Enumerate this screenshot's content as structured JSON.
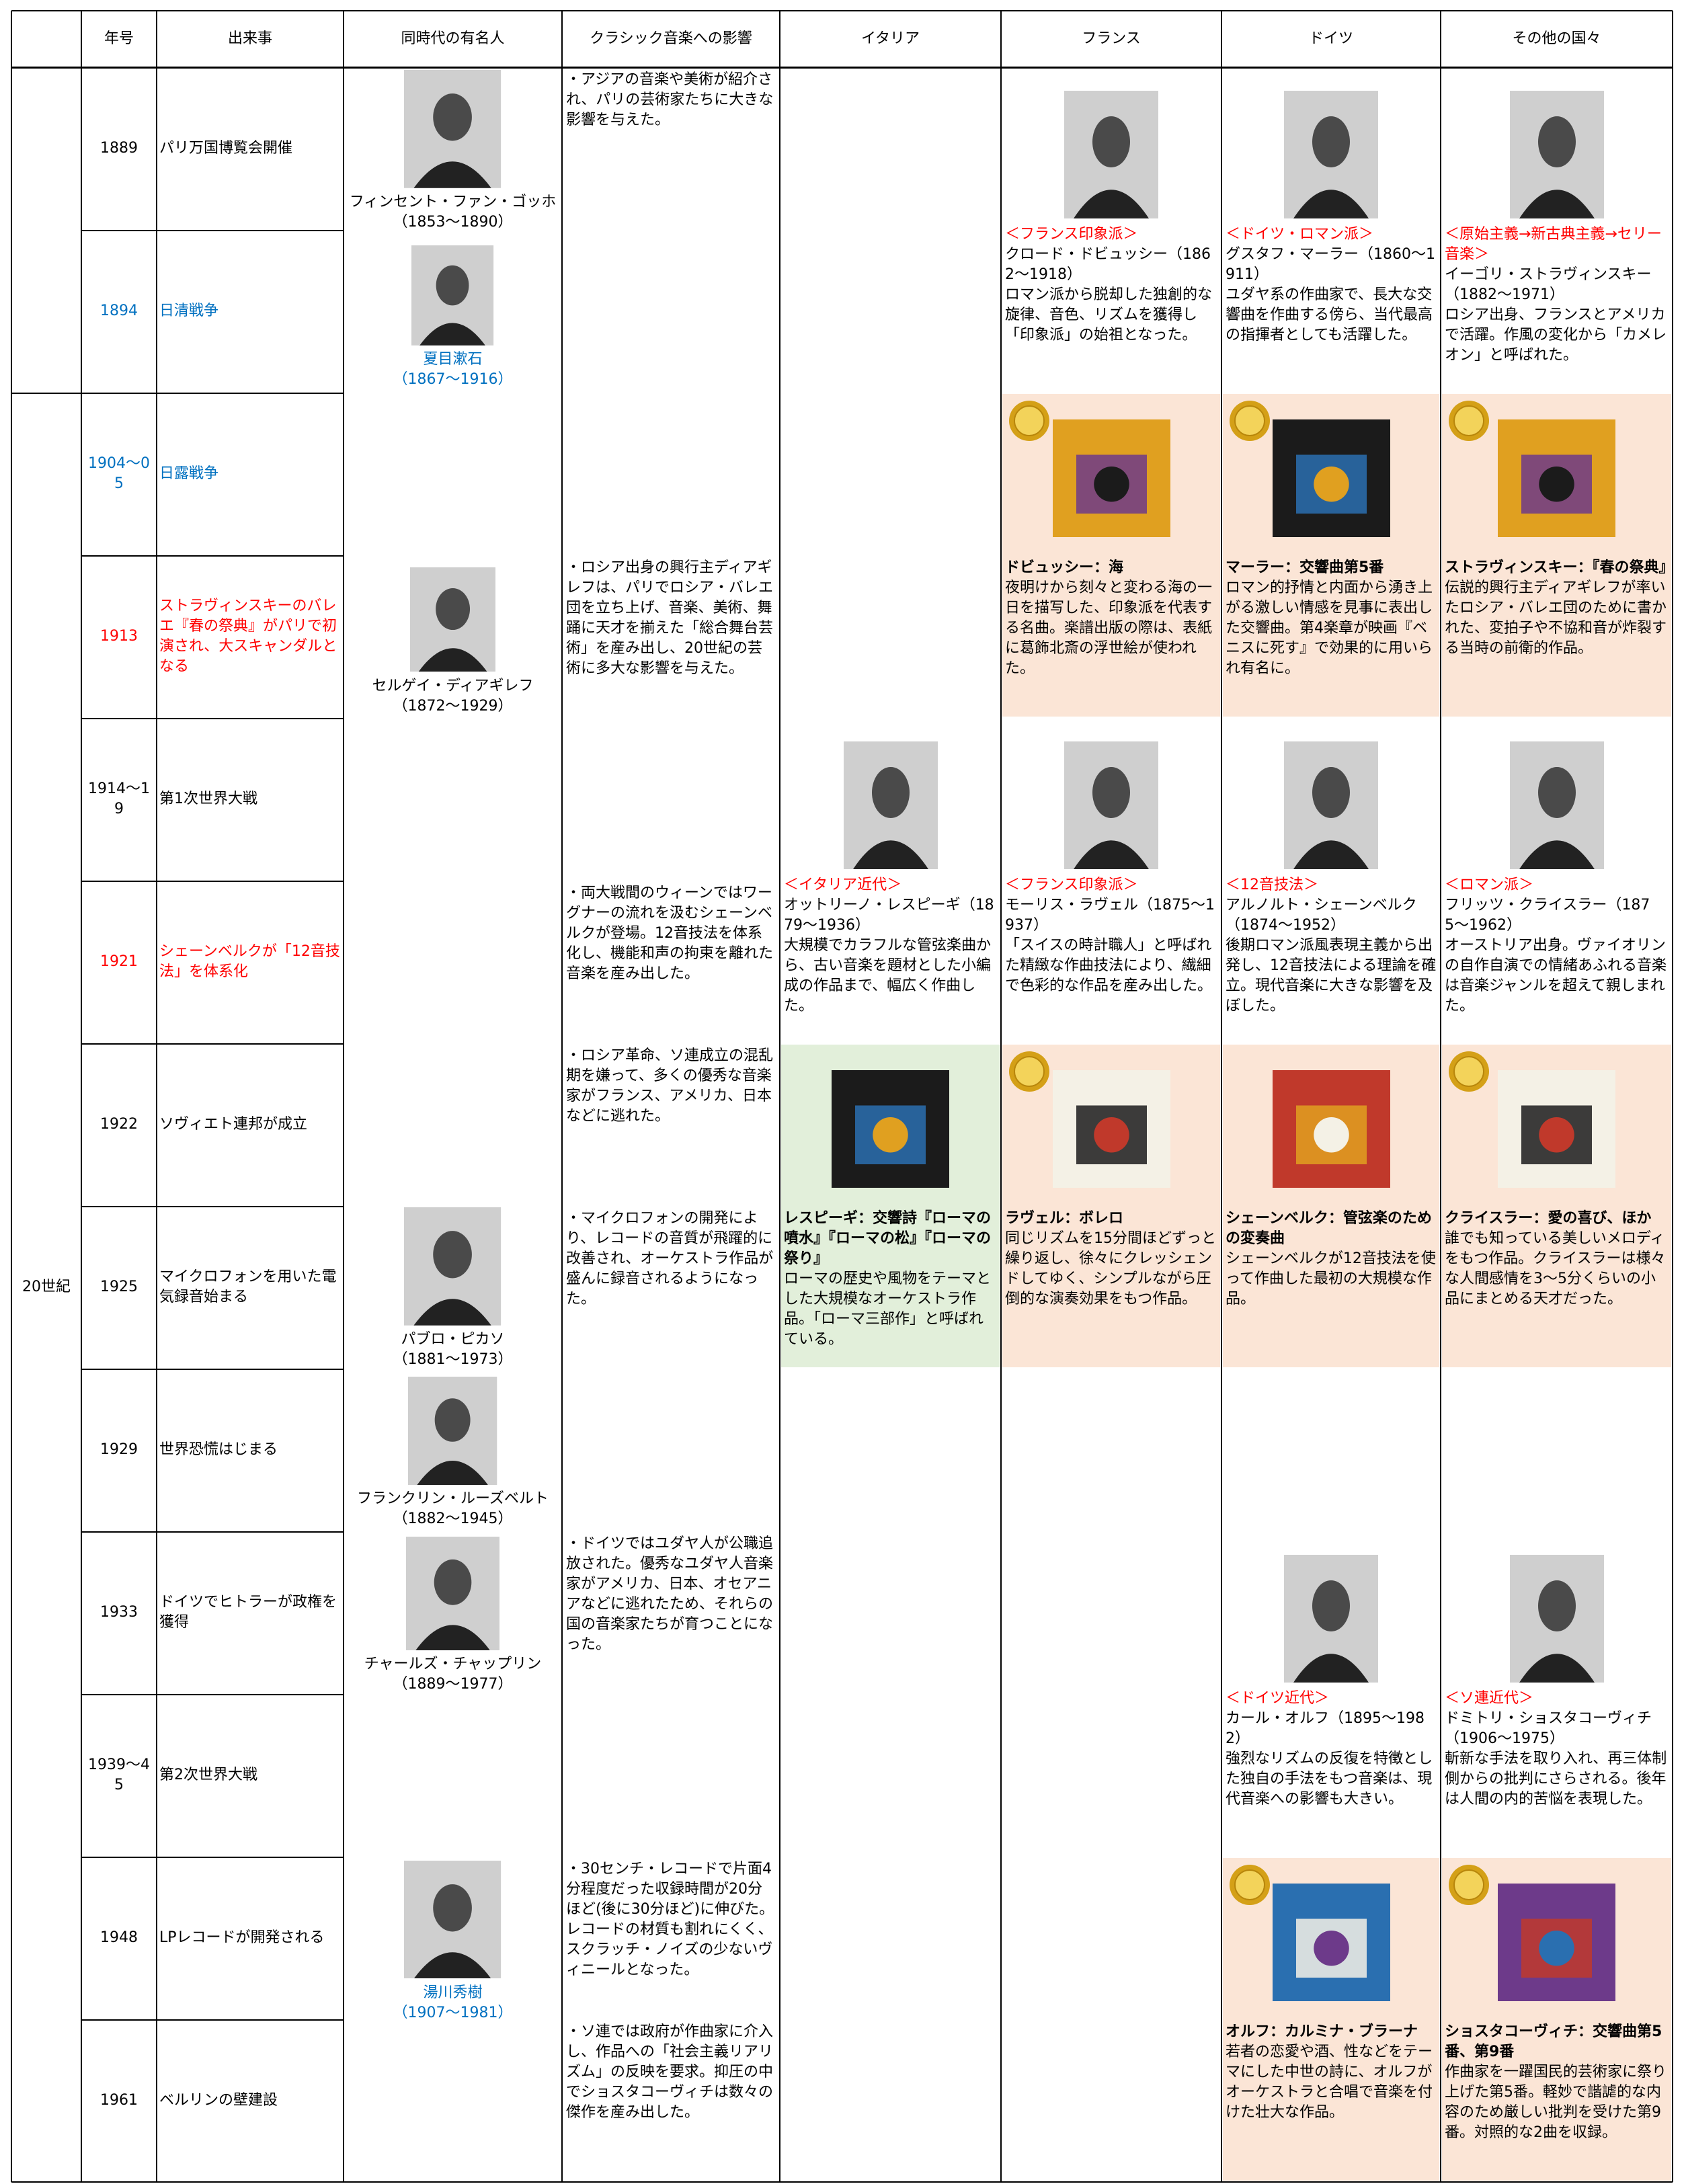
{
  "header": {
    "columns": [
      "年号",
      "出来事",
      "同時代の有名人",
      "クラシック音楽への影響",
      "イタリア",
      "フランス",
      "ドイツ",
      "その他の国々"
    ]
  },
  "era": "20世紀",
  "rows": [
    {
      "year": "1889",
      "event": "パリ万国博覧会開催"
    },
    {
      "year": "1894",
      "event": "日清戦争",
      "color": "#0070c0"
    },
    {
      "year": "1904〜05",
      "event": "日露戦争",
      "color": "#0070c0"
    },
    {
      "year": "1913",
      "event": "ストラヴィンスキーのバレエ『春の祭典』がパリで初演され、大スキャンダルとなる",
      "color": "#ff0000"
    },
    {
      "year": "1914〜19",
      "event": "第1次世界大戦"
    },
    {
      "year": "1921",
      "event": "シェーンベルクが「12音技法」を体系化",
      "color": "#ff0000"
    },
    {
      "year": "1922",
      "event": "ソヴィエト連邦が成立"
    },
    {
      "year": "1925",
      "event": "マイクロフォンを用いた電気録音始まる"
    },
    {
      "year": "1929",
      "event": "世界恐慌はじまる"
    },
    {
      "year": "1933",
      "event": "ドイツでヒトラーが政権を獲得"
    },
    {
      "year": "1939〜45",
      "event": "第2次世界大戦"
    },
    {
      "year": "1948",
      "event": "LPレコードが開発される"
    },
    {
      "year": "1961",
      "event": "ベルリンの壁建設"
    }
  ],
  "people": [
    {
      "name": "フィンセント・ファン・ゴッホ",
      "years": "（1853〜1890）"
    },
    {
      "name": "夏目漱石",
      "years": "（1867〜1916）",
      "color": "#0070c0"
    },
    {
      "name": "セルゲイ・ディアギレフ",
      "years": "（1872〜1929）"
    },
    {
      "name": "パブロ・ピカソ",
      "years": "（1881〜1973）"
    },
    {
      "name": "フランクリン・ルーズベルト",
      "years": "（1882〜1945）"
    },
    {
      "name": "チャールズ・チャップリン",
      "years": "（1889〜1977）"
    },
    {
      "name": "湯川秀樹",
      "years": "（1907〜1981）",
      "color": "#0070c0"
    }
  ],
  "influences": [
    "・アジアの音楽や美術が紹介され、パリの芸術家たちに大きな影響を与えた。",
    "・ロシア出身の興行主ディアギレフは、パリでロシア・バレエ団を立ち上げ、音楽、美術、舞踊に天才を揃えた「総合舞台芸術」を産み出し、20世紀の芸術に多大な影響を与えた。",
    "・両大戦間のウィーンではワーグナーの流れを汲むシェーンベルクが登場。12音技法を体系化し、機能和声の拘束を離れた音楽を産み出した。",
    "・ロシア革命、ソ連成立の混乱期を嫌って、多くの優秀な音楽家がフランス、アメリカ、日本などに逃れた。",
    "・マイクロフォンの開発により、レコードの音質が飛躍的に改善され、オーケストラ作品が盛んに録音されるようになった。",
    "・ドイツではユダヤ人が公職追放された。優秀なユダヤ人音楽家がアメリカ、日本、オセアニアなどに逃れたため、それらの国の音楽家たちが育つことになった。",
    "・30センチ・レコードで片面4分程度だった収録時間が20分ほど(後に30分ほど)に伸びた。レコードの材質も割れにくく、スクラッチ・ノイズの少ないヴィニールとなった。",
    "・ソ連では政府が作曲家に介入し、作品への「社会主義リアリズム」の反映を要求。抑圧の中でショスタコーヴィチは数々の傑作を産み出した。"
  ],
  "countries": [
    {
      "composers": [
        {
          "label": "＜イタリア近代＞",
          "name": "オットリーノ・レスピーギ",
          "years": "（1879〜1936）",
          "description": "大規模でカラフルな管弦楽曲から、古い音楽を題材とした小編成の作品まで、幅広く作曲した。"
        }
      ],
      "albums": [
        {
          "title": "レスピーギ：交響詩『ローマの噴水』『ローマの松』『ローマの祭り』",
          "description": "ローマの歴史や風物をテーマとした大規模なオーケストラ作品。「ローマ三部作」と呼ばれている。",
          "background": "#e2efda",
          "medal": false
        }
      ]
    },
    {
      "composers": [
        {
          "label": "＜フランス印象派＞",
          "name": "クロード・ドビュッシー",
          "years": "（1862〜1918）",
          "description": "ロマン派から脱却した独創的な旋律、音色、リズムを獲得し「印象派」の始祖となった。"
        },
        {
          "label": "＜フランス印象派＞",
          "name": "モーリス・ラヴェル",
          "years": "（1875〜1937）",
          "description": "「スイスの時計職人」と呼ばれた精緻な作曲技法により、繊細で色彩的な作品を産み出した。"
        }
      ],
      "albums": [
        {
          "title": "ドビュッシー：海",
          "description": "夜明けから刻々と変わる海の一日を描写した、印象派を代表する名曲。楽譜出版の際は、表紙に葛飾北斎の浮世絵が使われた。",
          "background": "#fbe5d6",
          "medal": true
        },
        {
          "title": "ラヴェル：ボレロ",
          "description": "同じリズムを15分間ほどずっと繰り返し、徐々にクレッシェンドしてゆく、シンプルながら圧倒的な演奏効果をもつ作品。",
          "background": "#fbe5d6",
          "medal": true
        }
      ]
    },
    {
      "composers": [
        {
          "label": "＜ドイツ・ロマン派＞",
          "name": "グスタフ・マーラー",
          "years": "（1860〜1911）",
          "description": "ユダヤ系の作曲家で、長大な交響曲を作曲する傍ら、当代最高の指揮者としても活躍した。"
        },
        {
          "label": "＜12音技法＞",
          "name": "アルノルト・シェーンベルク",
          "years": "（1874〜1952）",
          "description": "後期ロマン派風表現主義から出発し、12音技法による理論を確立。現代音楽に大きな影響を及ぼした。"
        },
        {
          "label": "＜ドイツ近代＞",
          "name": "カール・オルフ",
          "years": "（1895〜1982）",
          "description": "強烈なリズムの反復を特徴とした独自の手法をもつ音楽は、現代音楽への影響も大きい。"
        }
      ],
      "albums": [
        {
          "title": "マーラー：交響曲第5番",
          "description": "ロマン的抒情と内面から湧き上がる激しい情感を見事に表出した交響曲。第4楽章が映画『ベニスに死す』で効果的に用いられ有名に。",
          "background": "#fbe5d6",
          "medal": true
        },
        {
          "title": "シェーンベルク：管弦楽のための変奏曲",
          "description": "シェーンベルクが12音技法を使って作曲した最初の大規模な作品。",
          "background": "#fbe5d6",
          "medal": false
        },
        {
          "title": "オルフ：カルミナ・ブラーナ",
          "description": "若者の恋愛や酒、性などをテーマにした中世の詩に、オルフがオーケストラと合唱で音楽を付けた壮大な作品。",
          "background": "#fbe5d6",
          "medal": true
        }
      ]
    },
    {
      "composers": [
        {
          "label": "＜原始主義→新古典主義→セリー音楽＞",
          "name": "イーゴリ・ストラヴィンスキー",
          "years": "（1882〜1971）",
          "description": "ロシア出身、フランスとアメリカで活躍。作風の変化から「カメレオン」と呼ばれた。"
        },
        {
          "label": "＜ロマン派＞",
          "name": "フリッツ・クライスラー",
          "years": "（1875〜1962）",
          "description": "オーストリア出身。ヴァイオリンの自作自演での情緒あふれる音楽は音楽ジャンルを超えて親しまれた。"
        },
        {
          "label": "＜ソ連近代＞",
          "name": "ドミトリ・ショスタコーヴィチ",
          "years": "（1906〜1975）",
          "description": "斬新な手法を取り入れ、再三体制側からの批判にさらされる。後年は人間の内的苦悩を表現した。"
        }
      ],
      "albums": [
        {
          "title": "ストラヴィンスキー：『春の祭典』",
          "description": "伝説的興行主ディアギレフが率いたロシア・バレエ団のために書かれた、変拍子や不協和音が炸裂する当時の前衛的作品。",
          "background": "#fbe5d6",
          "medal": true
        },
        {
          "title": "クライスラー：愛の喜び、ほか",
          "description": "誰でも知っている美しいメロディをもつ作品。クライスラーは様々な人間感情を3〜5分くらいの小品にまとめる天才だった。",
          "background": "#fbe5d6",
          "medal": true
        },
        {
          "title": "ショスタコーヴィチ：交響曲第5番、第9番",
          "description": "作曲家を一躍国民的芸術家に祭り上げた第5番。軽妙で諧謔的な内容のため厳しい批判を受けた第9番。対照的な2曲を収録。",
          "background": "#fbe5d6",
          "medal": true
        }
      ]
    }
  ]
}
